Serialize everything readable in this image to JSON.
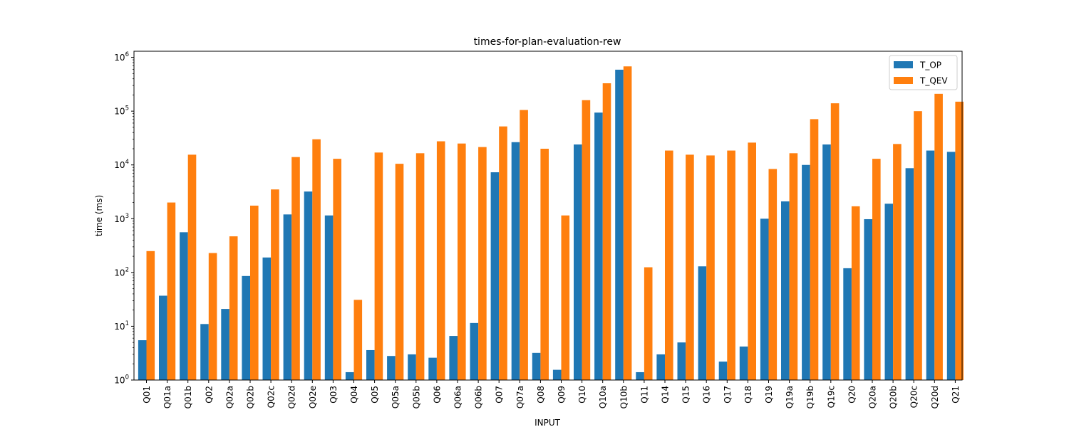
{
  "chart_data": {
    "type": "bar",
    "title": "times-for-plan-evaluation-rew",
    "xlabel": "INPUT",
    "ylabel": "time (ms)",
    "yscale": "log",
    "ylim": [
      1,
      1300000
    ],
    "yticks": [
      {
        "value": 1,
        "base": "10",
        "exp": "0"
      },
      {
        "value": 10,
        "base": "10",
        "exp": "1"
      },
      {
        "value": 100,
        "base": "10",
        "exp": "2"
      },
      {
        "value": 1000,
        "base": "10",
        "exp": "3"
      },
      {
        "value": 10000,
        "base": "10",
        "exp": "4"
      },
      {
        "value": 100000,
        "base": "10",
        "exp": "5"
      },
      {
        "value": 1000000,
        "base": "10",
        "exp": "6"
      }
    ],
    "grid": false,
    "legend_position": "top-right",
    "categories": [
      "Q01",
      "Q01a",
      "Q01b",
      "Q02",
      "Q02a",
      "Q02b",
      "Q02c",
      "Q02d",
      "Q02e",
      "Q03",
      "Q04",
      "Q05",
      "Q05a",
      "Q05b",
      "Q06",
      "Q06a",
      "Q06b",
      "Q07",
      "Q07a",
      "Q08",
      "Q09",
      "Q10",
      "Q10a",
      "Q10b",
      "Q11",
      "Q14",
      "Q15",
      "Q16",
      "Q17",
      "Q18",
      "Q19",
      "Q19a",
      "Q19b",
      "Q19c",
      "Q20",
      "Q20a",
      "Q20b",
      "Q20c",
      "Q20d",
      "Q21"
    ],
    "series": [
      {
        "name": "T_OP",
        "color": "#1f77b4",
        "values": [
          5.5,
          37,
          560,
          11,
          21,
          86,
          190,
          1200,
          3200,
          1150,
          1.4,
          3.6,
          2.8,
          3.0,
          2.6,
          6.6,
          11.5,
          7300,
          26500,
          3.2,
          1.55,
          24000,
          94000,
          590000,
          1.4,
          3.0,
          5.0,
          130,
          2.2,
          4.2,
          1000,
          2100,
          10000,
          24000,
          120,
          980,
          1900,
          8700,
          18500,
          17500
        ]
      },
      {
        "name": "T_QEV",
        "color": "#ff7f0e",
        "values": [
          250,
          2000,
          15500,
          230,
          470,
          1750,
          3500,
          14000,
          30000,
          13000,
          31,
          17000,
          10500,
          16500,
          27500,
          25000,
          21500,
          52000,
          105000,
          20000,
          1150,
          160000,
          330000,
          680000,
          125,
          18500,
          15500,
          15000,
          18500,
          26000,
          8400,
          16500,
          71000,
          140000,
          1700,
          13000,
          24500,
          100000,
          210000,
          150000
        ]
      }
    ]
  }
}
